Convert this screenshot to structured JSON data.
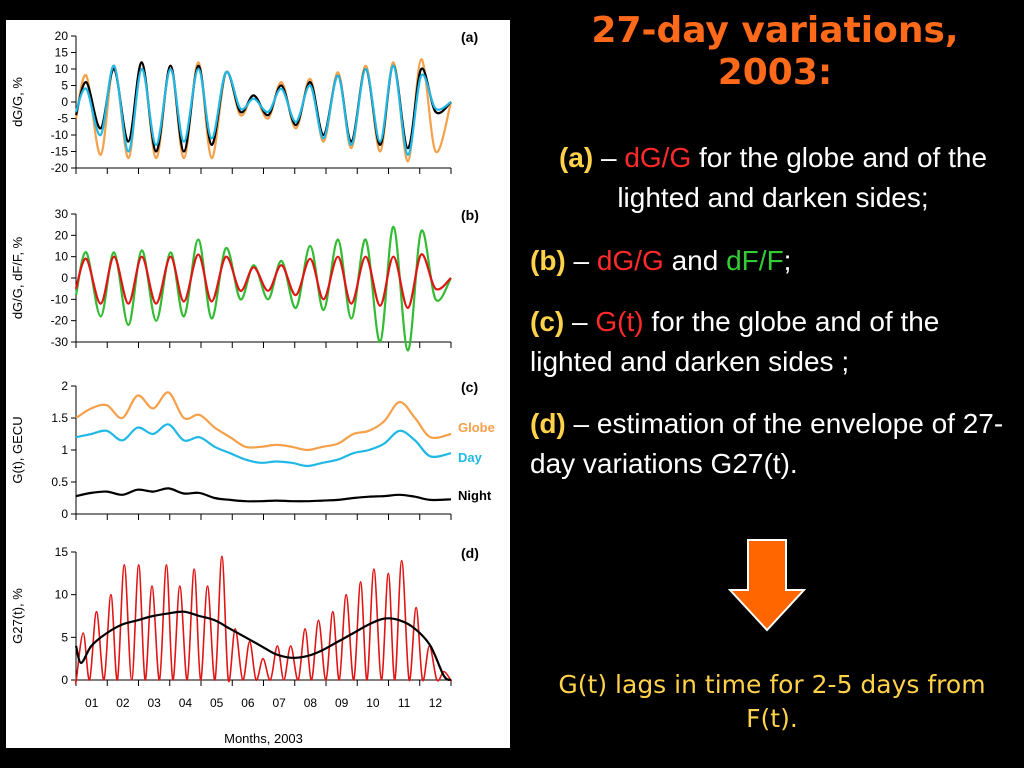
{
  "title_line1": "27-day variations,",
  "title_line2": "2003:",
  "items": [
    {
      "tag": "(a)",
      "dash": " – ",
      "p1": "dG/G",
      "p2": " for the globe and of the lighted and darken sides;"
    },
    {
      "tag": "(b)",
      "dash": " – ",
      "p1": "dG/G",
      "p2": " and ",
      "p3": "dF/F",
      "p4": ";"
    },
    {
      "tag": "(c)",
      "dash": " – ",
      "p1": "G(t)",
      "p2": " for the globe and of the lighted and darken sides ;"
    },
    {
      "tag": "(d)",
      "dash": " – ",
      "p2": "estimation of the envelope of 27-day variations G27(t)."
    }
  ],
  "conclusion": "G(t) lags in time for 2-5 days from F(t).",
  "colors": {
    "title": "#ff6a1a",
    "tag": "#ffd24a",
    "red": "#ff2a2a",
    "green": "#33cc33",
    "arrow": "#ff6600",
    "globe": "#f5a04a",
    "day": "#22b8e6",
    "night": "#000000",
    "f_green": "#33bb33"
  },
  "chart_data": [
    {
      "type": "line",
      "panel_label": "(a)",
      "ylabel": "dG/G, %",
      "ylim": [
        -20,
        20
      ],
      "yticks": [
        -20,
        -15,
        -10,
        -5,
        0,
        5,
        10,
        15,
        20
      ],
      "x_range": [
        0,
        365
      ],
      "series": [
        {
          "color": "#f5a04a",
          "x": [
            0,
            10,
            24,
            37,
            51,
            64,
            78,
            92,
            105,
            119,
            132,
            146,
            160,
            173,
            187,
            200,
            214,
            228,
            241,
            255,
            268,
            282,
            296,
            309,
            323,
            336,
            350,
            365
          ],
          "values": [
            -5,
            8,
            -16,
            11,
            -17,
            12,
            -17,
            11,
            -17,
            12,
            -17,
            9,
            -4,
            2,
            -5,
            6,
            -8,
            7,
            -12,
            9,
            -14,
            11,
            -15,
            12,
            -18,
            13,
            -15,
            0
          ]
        },
        {
          "color": "#000000",
          "x": [
            0,
            10,
            24,
            37,
            51,
            64,
            78,
            92,
            105,
            119,
            132,
            146,
            160,
            173,
            187,
            200,
            214,
            228,
            241,
            255,
            268,
            282,
            296,
            309,
            323,
            336,
            350,
            365
          ],
          "values": [
            -4,
            6,
            -8,
            10,
            -12,
            12,
            -15,
            11,
            -15,
            11,
            -13,
            9,
            -3,
            2,
            -4,
            5,
            -7,
            6,
            -10,
            8,
            -12,
            10,
            -13,
            11,
            -14,
            10,
            -3,
            0
          ]
        },
        {
          "color": "#22b8e6",
          "x": [
            0,
            10,
            24,
            37,
            51,
            64,
            78,
            92,
            105,
            119,
            132,
            146,
            160,
            173,
            187,
            200,
            214,
            228,
            241,
            255,
            268,
            282,
            296,
            309,
            323,
            336,
            350,
            365
          ],
          "values": [
            -3,
            4,
            -10,
            11,
            -15,
            10,
            -13,
            10,
            -12,
            10,
            -11,
            9,
            -2,
            1,
            -3,
            4,
            -6,
            5,
            -11,
            8,
            -13,
            10,
            -12,
            11,
            -16,
            8,
            -2,
            0
          ]
        }
      ]
    },
    {
      "type": "line",
      "panel_label": "(b)",
      "ylabel": "dG/G, dF/F, %",
      "ylim": [
        -30,
        30
      ],
      "yticks": [
        -30,
        -20,
        -10,
        0,
        10,
        20,
        30
      ],
      "x_range": [
        0,
        365
      ],
      "series": [
        {
          "color": "#33bb33",
          "x": [
            0,
            10,
            24,
            37,
            51,
            64,
            78,
            92,
            105,
            119,
            132,
            146,
            160,
            173,
            187,
            200,
            214,
            228,
            241,
            255,
            268,
            282,
            296,
            309,
            323,
            336,
            350,
            365
          ],
          "values": [
            -8,
            12,
            -18,
            12,
            -22,
            13,
            -20,
            12,
            -18,
            18,
            -19,
            14,
            -10,
            6,
            -10,
            8,
            -14,
            15,
            -15,
            18,
            -19,
            18,
            -30,
            24,
            -34,
            22,
            -10,
            0
          ]
        },
        {
          "color": "#e01515",
          "x": [
            0,
            10,
            24,
            37,
            51,
            64,
            78,
            92,
            105,
            119,
            132,
            146,
            160,
            173,
            187,
            200,
            214,
            228,
            241,
            255,
            268,
            282,
            296,
            309,
            323,
            336,
            350,
            365
          ],
          "values": [
            -5,
            9,
            -12,
            10,
            -12,
            10,
            -12,
            10,
            -11,
            11,
            -11,
            10,
            -6,
            5,
            -6,
            6,
            -8,
            9,
            -10,
            10,
            -12,
            10,
            -13,
            10,
            -14,
            11,
            -5,
            0
          ]
        }
      ]
    },
    {
      "type": "line",
      "panel_label": "(c)",
      "ylabel": "G(t), GECU",
      "ylim": [
        0,
        2
      ],
      "yticks": [
        0,
        0.5,
        1,
        1.5,
        2
      ],
      "x_range": [
        0,
        365
      ],
      "legend": [
        {
          "name": "Globe",
          "color": "#f5a04a"
        },
        {
          "name": "Day",
          "color": "#22b8e6"
        },
        {
          "name": "Night",
          "color": "#000000"
        }
      ],
      "series": [
        {
          "name": "Globe",
          "color": "#f5a04a",
          "x": [
            0,
            15,
            30,
            45,
            60,
            75,
            90,
            105,
            120,
            135,
            150,
            165,
            180,
            195,
            210,
            225,
            240,
            255,
            270,
            285,
            300,
            315,
            330,
            345,
            365
          ],
          "values": [
            1.5,
            1.65,
            1.7,
            1.5,
            1.85,
            1.65,
            1.9,
            1.5,
            1.55,
            1.35,
            1.2,
            1.05,
            1.05,
            1.08,
            1.05,
            1.0,
            1.05,
            1.1,
            1.25,
            1.3,
            1.45,
            1.75,
            1.5,
            1.2,
            1.25
          ]
        },
        {
          "name": "Day",
          "color": "#22b8e6",
          "x": [
            0,
            15,
            30,
            45,
            60,
            75,
            90,
            105,
            120,
            135,
            150,
            165,
            180,
            195,
            210,
            225,
            240,
            255,
            270,
            285,
            300,
            315,
            330,
            345,
            365
          ],
          "values": [
            1.2,
            1.25,
            1.3,
            1.15,
            1.35,
            1.25,
            1.4,
            1.15,
            1.2,
            1.05,
            0.95,
            0.85,
            0.8,
            0.82,
            0.8,
            0.75,
            0.8,
            0.85,
            0.95,
            1.0,
            1.1,
            1.3,
            1.15,
            0.9,
            0.95
          ]
        },
        {
          "name": "Night",
          "color": "#000000",
          "x": [
            0,
            15,
            30,
            45,
            60,
            75,
            90,
            105,
            120,
            135,
            150,
            165,
            180,
            195,
            210,
            225,
            240,
            255,
            270,
            285,
            300,
            315,
            330,
            345,
            365
          ],
          "values": [
            0.28,
            0.33,
            0.35,
            0.3,
            0.38,
            0.35,
            0.4,
            0.32,
            0.33,
            0.25,
            0.22,
            0.2,
            0.2,
            0.21,
            0.2,
            0.2,
            0.21,
            0.22,
            0.25,
            0.27,
            0.28,
            0.3,
            0.27,
            0.22,
            0.23
          ]
        }
      ]
    },
    {
      "type": "line",
      "panel_label": "(d)",
      "ylabel": "G27(t), %",
      "ylim": [
        0,
        15
      ],
      "yticks": [
        0,
        5,
        10,
        15
      ],
      "x_range": [
        0,
        365
      ],
      "xticklabels": [
        "01",
        "02",
        "03",
        "04",
        "05",
        "06",
        "07",
        "08",
        "09",
        "10",
        "11",
        "12"
      ],
      "xlabel": "Months, 2003",
      "series": [
        {
          "color": "#e01515",
          "type": "oscillation",
          "x": [
            7,
            20,
            34,
            47,
            61,
            74,
            88,
            101,
            115,
            128,
            142,
            155,
            169,
            182,
            196,
            209,
            223,
            236,
            250,
            263,
            277,
            290,
            304,
            317,
            331,
            344,
            358
          ],
          "values": [
            5.5,
            8,
            10,
            13.5,
            13.5,
            11,
            13.5,
            11,
            13,
            11,
            14.5,
            6,
            4.5,
            2.5,
            4,
            4,
            6,
            7,
            8,
            10,
            11.5,
            13,
            12.5,
            14,
            8.5,
            4,
            1
          ]
        },
        {
          "color": "#000000",
          "x": [
            0,
            5,
            15,
            30,
            45,
            60,
            75,
            90,
            105,
            120,
            135,
            150,
            165,
            180,
            195,
            210,
            225,
            240,
            255,
            270,
            285,
            300,
            315,
            330,
            345,
            358,
            365
          ],
          "values": [
            4,
            2,
            4,
            5.5,
            6.5,
            7,
            7.5,
            7.8,
            8,
            7.5,
            7,
            6,
            5,
            4,
            3,
            2.6,
            2.8,
            3.5,
            4.5,
            5.5,
            6.5,
            7.2,
            7,
            6,
            4,
            0.5,
            0
          ]
        }
      ]
    }
  ]
}
